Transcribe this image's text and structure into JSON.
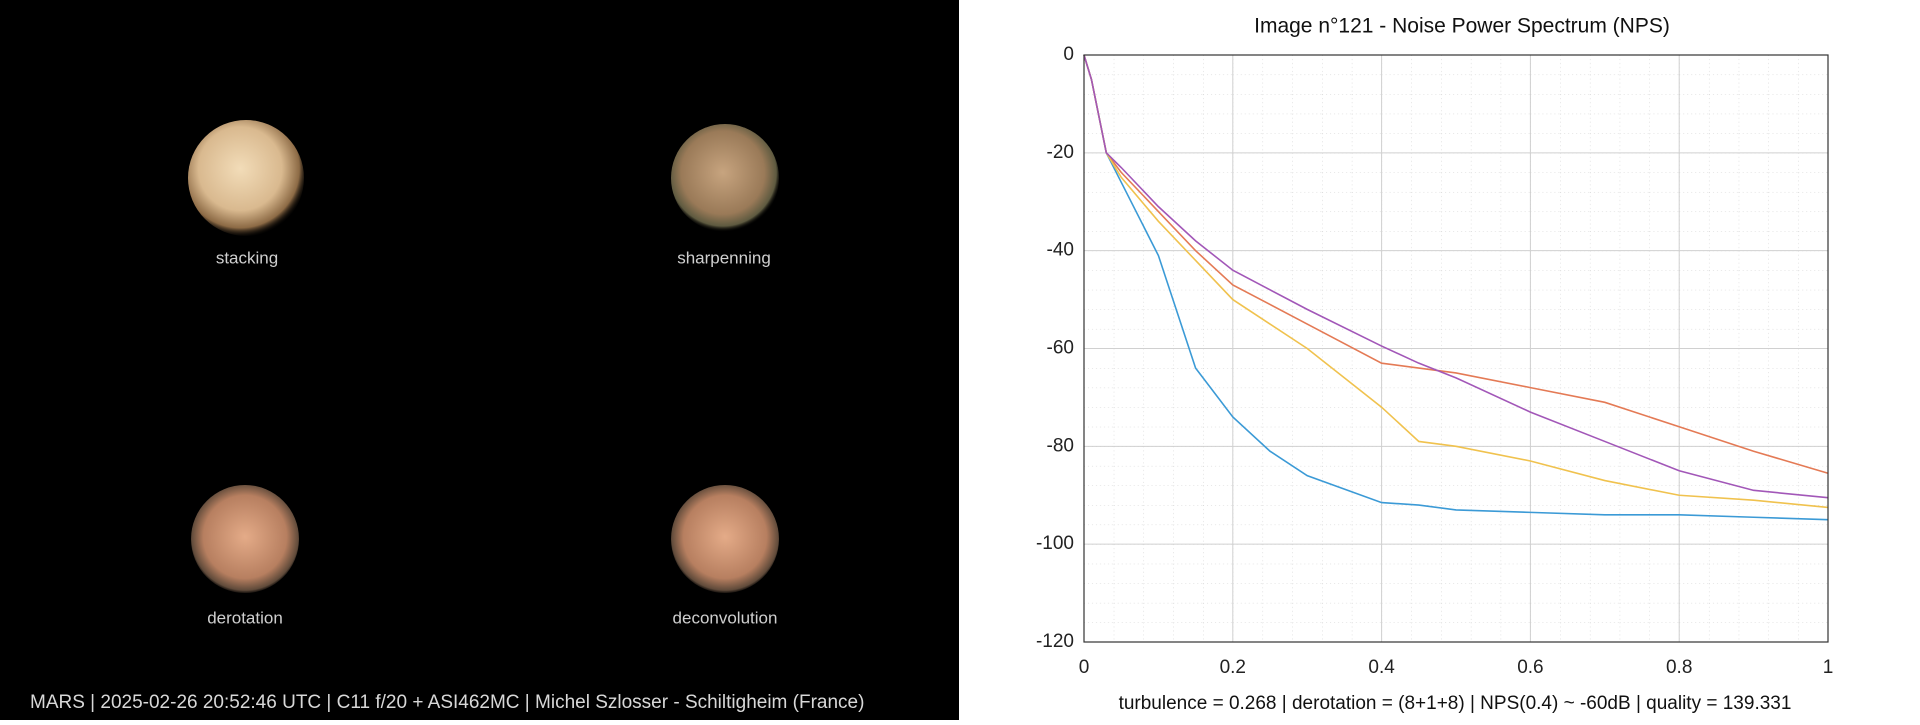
{
  "panel_labels": [
    "stacking",
    "sharpenning",
    "derotation",
    "deconvolution"
  ],
  "footer": "MARS | 2025-02-26  20:52:46 UTC | C11 f/20 + ASI462MC | Michel Szlosser - Schiltigheim (France)",
  "chart_data": {
    "type": "line",
    "title": "Image n°121 - Noise Power Spectrum (NPS)",
    "caption": "turbulence = 0.268 | derotation = (8+1+8) | NPS(0.4) ~ -60dB |  quality = 139.331",
    "x": [
      0,
      0.01,
      0.03,
      0.05,
      0.1,
      0.15,
      0.2,
      0.25,
      0.3,
      0.4,
      0.45,
      0.5,
      0.6,
      0.7,
      0.8,
      0.9,
      1
    ],
    "series": [
      {
        "color": "#3b9ad6",
        "values": [
          0,
          -5,
          -20,
          -26,
          -41,
          -64,
          -74,
          -81,
          -86,
          -91.5,
          -92,
          -93,
          -93.5,
          -94,
          -94,
          -94.5,
          -95
        ]
      },
      {
        "color": "#e47a55",
        "values": [
          0,
          -5,
          -20,
          -24,
          -32,
          -40,
          -47,
          -51,
          -55,
          -63,
          -64,
          -65,
          -68,
          -71,
          -76,
          -81,
          -85.5
        ]
      },
      {
        "color": "#f0c24e",
        "values": [
          0,
          -5,
          -20,
          -25,
          -34,
          -42,
          -50,
          -55,
          -60,
          -72,
          -79,
          -80,
          -83,
          -87,
          -90,
          -91,
          -92.5
        ]
      },
      {
        "color": "#a257b8",
        "values": [
          0,
          -5,
          -20,
          -23,
          -31,
          -38,
          -44,
          -48,
          -52,
          -59.5,
          -63,
          -66,
          -73,
          -79,
          -85,
          -89,
          -90.5
        ]
      }
    ],
    "xlim": [
      0,
      1
    ],
    "ylim": [
      -120,
      0
    ],
    "xticks": [
      0,
      0.2,
      0.4,
      0.6,
      0.8,
      1
    ],
    "yticks": [
      0,
      -20,
      -40,
      -60,
      -80,
      -100,
      -120
    ],
    "grid": true
  }
}
